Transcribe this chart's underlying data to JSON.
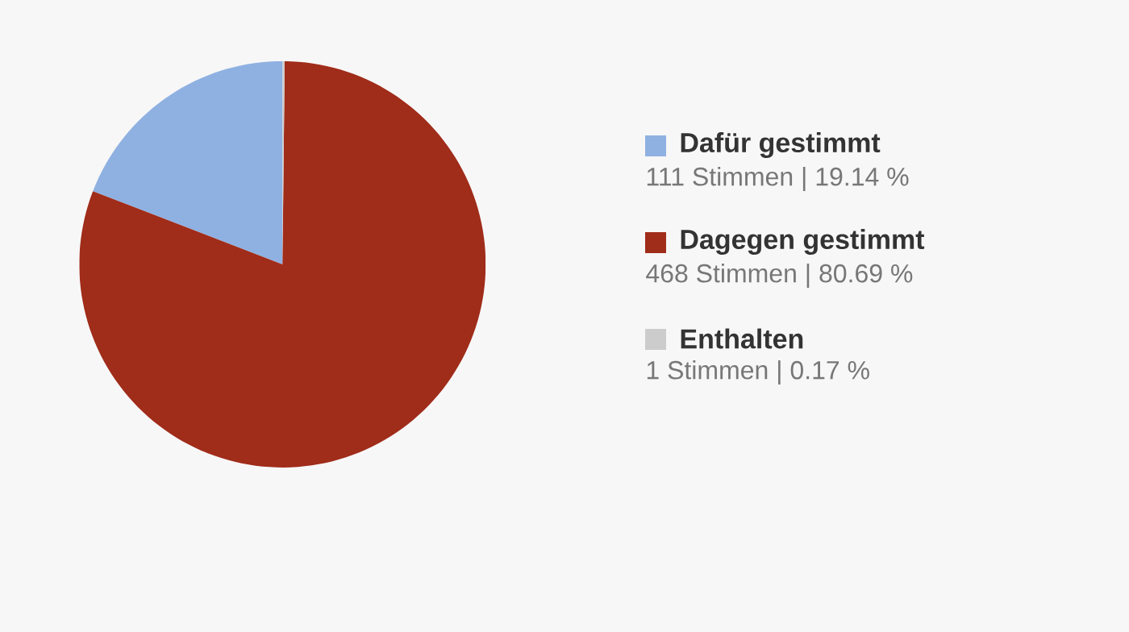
{
  "chart_data": {
    "type": "pie",
    "categories": [
      "Dafür gestimmt",
      "Dagegen gestimmt",
      "Enthalten"
    ],
    "values": [
      111,
      468,
      1
    ],
    "colors": [
      "#8fb1e2",
      "#a02c1a",
      "#cccccc"
    ],
    "value_labels": [
      "111 Stimmen | 19.14 %",
      "468 Stimmen | 80.69 %",
      "1 Stimmen | 0.17 %"
    ],
    "legend": "right"
  }
}
